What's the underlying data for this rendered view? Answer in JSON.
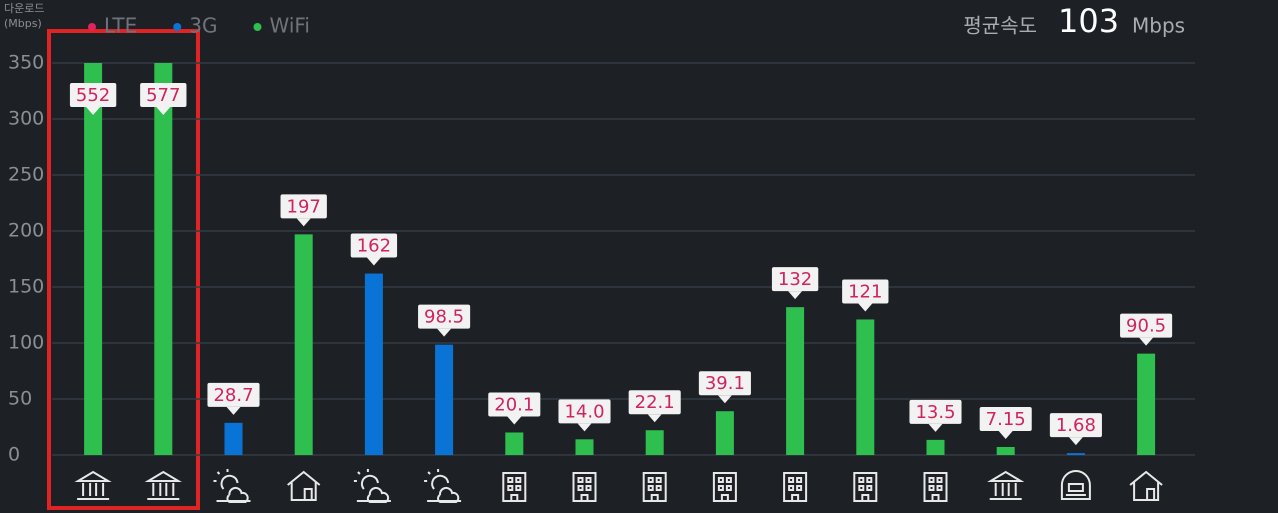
{
  "chart_data": {
    "type": "bar",
    "y_label_top": "다운로드",
    "y_label_unit": "(Mbps)",
    "avg_label": "평균속도",
    "avg_value": 103,
    "avg_unit": "Mbps",
    "categories": [
      null,
      null,
      null,
      null,
      null,
      null,
      null,
      null,
      null,
      null,
      null,
      null,
      null,
      null,
      null,
      null
    ],
    "series": [
      {
        "name": "LTE",
        "color": "#e0245e",
        "values": [
          null,
          null,
          null,
          null,
          null,
          null,
          null,
          null,
          null,
          null,
          null,
          null,
          null,
          null,
          null,
          null
        ]
      },
      {
        "name": "3G",
        "color": "#0a74d6",
        "values": [
          null,
          null,
          28.7,
          null,
          162,
          98.5,
          null,
          null,
          null,
          null,
          null,
          null,
          null,
          null,
          1.68,
          null
        ]
      },
      {
        "name": "WiFi",
        "color": "#2fbf4f",
        "values": [
          552,
          577,
          null,
          197,
          null,
          null,
          20.1,
          14,
          22.1,
          39.1,
          132,
          121,
          13.5,
          7.15,
          null,
          90.5
        ],
        "value_labels": [
          "552",
          "577",
          null,
          "197",
          null,
          null,
          "20.1",
          "14.0",
          "22.1",
          "39.1",
          "132",
          "121",
          "13.5",
          "7.15",
          null,
          "90.5"
        ]
      }
    ],
    "ylim": [
      0,
      350
    ],
    "yticks": [
      0,
      50,
      100,
      150,
      200,
      250,
      300,
      350
    ],
    "grid": true,
    "legend": "top-left"
  }
}
